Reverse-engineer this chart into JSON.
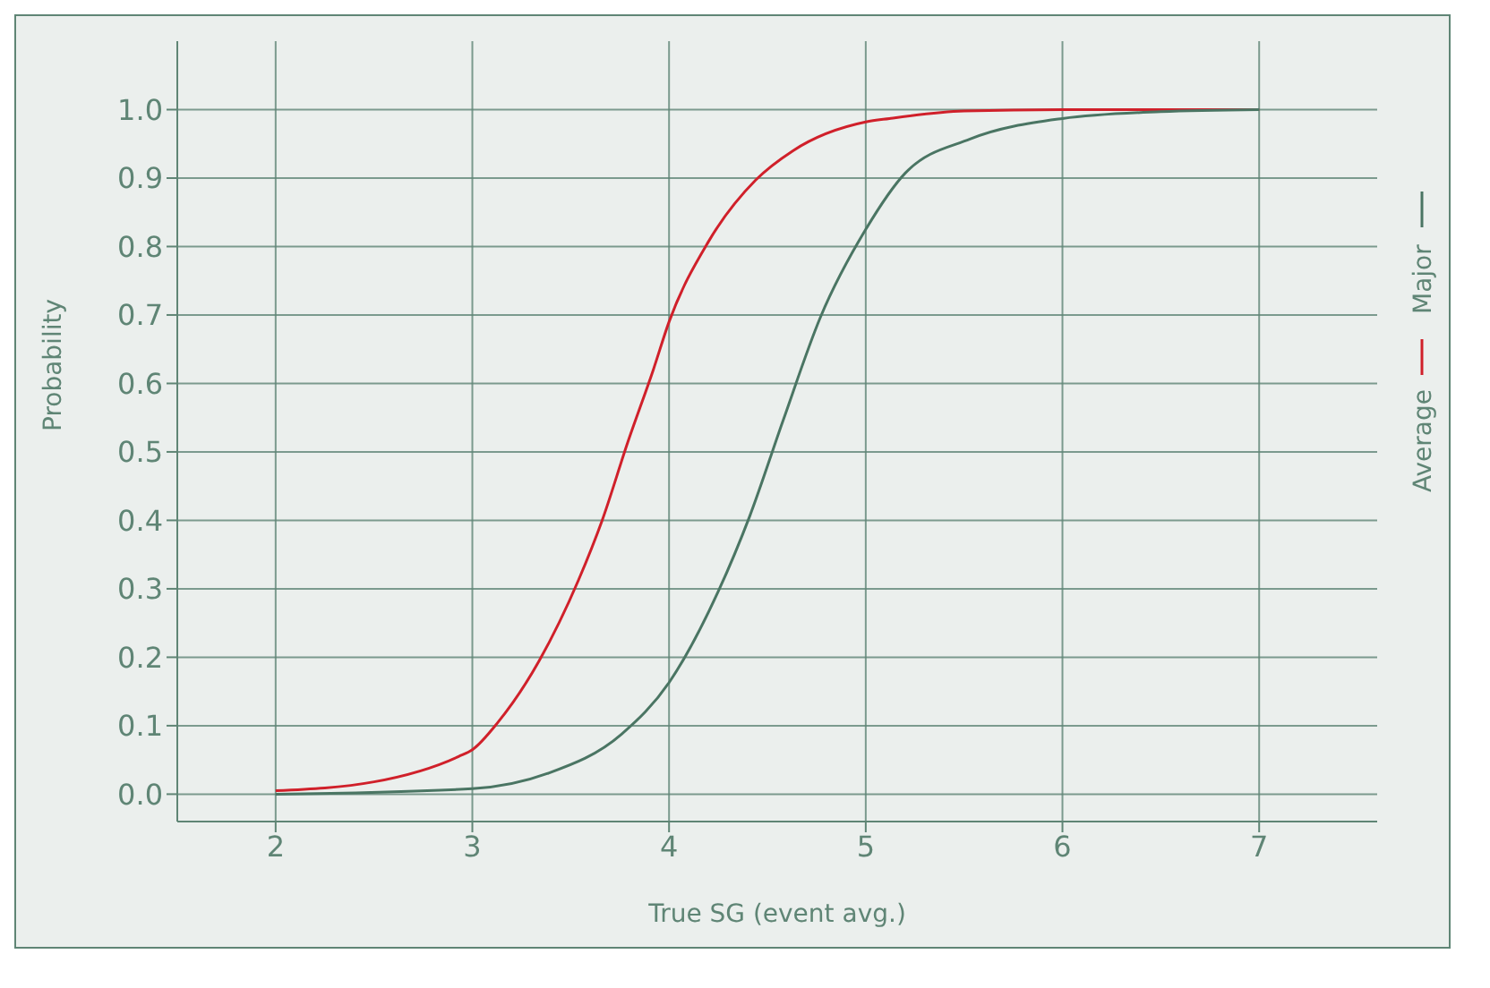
{
  "chart_data": {
    "type": "line",
    "xlabel": "True SG (event avg.)",
    "ylabel": "Probability",
    "xlim": [
      1.5,
      7.6
    ],
    "xticks": [
      2,
      3,
      4,
      5,
      6,
      7
    ],
    "ylim": [
      -0.04,
      1.1
    ],
    "yticks": [
      {
        "value": 0,
        "label": "0.0"
      },
      0.1,
      0.2,
      0.3,
      0.4,
      0.5,
      0.6,
      0.7,
      0.8,
      0.9,
      {
        "value": 1,
        "label": "1.0"
      }
    ],
    "grid": true,
    "legend": "right",
    "marker": "none",
    "line_style": "solid",
    "series": [
      {
        "name": "Average",
        "color": "#d0202a",
        "x": [
          2,
          2.5,
          2.93,
          3,
          3.13,
          3.34,
          3.54,
          3.66,
          3.79,
          3.92,
          4,
          4.2,
          4.44,
          4.63,
          5,
          5.12,
          5.5,
          6,
          7
        ],
        "values": [
          0.005,
          0.018,
          0.055,
          0.065,
          0.105,
          0.195,
          0.313,
          0.4,
          0.514,
          0.62,
          0.69,
          0.807,
          0.897,
          0.94,
          0.982,
          0.987,
          0.998,
          1.0,
          1.0
        ]
      },
      {
        "name": "Major",
        "color": "#4a7563",
        "x": [
          2,
          3,
          3.38,
          3.76,
          4,
          4.25,
          4.41,
          4.58,
          4.77,
          5,
          5.2,
          5.53,
          6,
          6.5,
          7
        ],
        "values": [
          0.0,
          0.008,
          0.03,
          0.088,
          0.163,
          0.296,
          0.406,
          0.546,
          0.697,
          0.825,
          0.907,
          0.957,
          0.987,
          0.997,
          1.0
        ]
      }
    ]
  }
}
